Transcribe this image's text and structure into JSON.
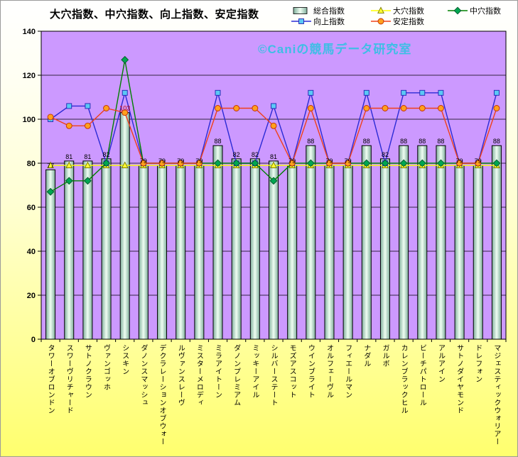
{
  "watermark": "©Caniの競馬データ研究室",
  "chart_data": {
    "type": "bar+line combo",
    "title": "大穴指数、中穴指数、向上指数、安定指数",
    "categories": [
      "タワーオブロンドン",
      "スワーヴリチャード",
      "サトノクラウン",
      "ヴァンゴッホ",
      "シスキン",
      "ダノンスマッシュ",
      "デクラレーションオブウォー",
      "ルヴァンスレーヴ",
      "ミスターメロディ",
      "ミラアイトーン",
      "ダノンプレミアム",
      "ミッキーアイル",
      "シルバーステート",
      "モズアスコット",
      "ウインブライト",
      "オルフェーヴル",
      "フィエールマン",
      "ナダル",
      "ガルボ",
      "カレンブラックヒル",
      "ビーチパトロール",
      "アルアイン",
      "サトノダイヤモンド",
      "ドレフォン",
      "マジェスティックウォリアー"
    ],
    "series": [
      {
        "name": "総合指数",
        "type": "bar",
        "values": [
          77,
          81,
          81,
          82,
          103,
          79,
          79,
          79,
          79,
          88,
          82,
          82,
          81,
          79,
          88,
          79,
          79,
          88,
          82,
          88,
          88,
          88,
          79,
          79,
          88
        ]
      },
      {
        "name": "大穴指数",
        "type": "line",
        "marker": "triangle",
        "line_color": "#FFFF00",
        "marker_fill": "#FFFF33",
        "marker_edge": "#7A7A00",
        "values": [
          79,
          79,
          79,
          79,
          79,
          79,
          79,
          79,
          79,
          79,
          79,
          79,
          79,
          79,
          79,
          79,
          79,
          79,
          79,
          79,
          79,
          79,
          79,
          79,
          79
        ]
      },
      {
        "name": "中穴指数",
        "type": "line",
        "marker": "diamond",
        "line_color": "#008000",
        "marker_fill": "#00A651",
        "marker_edge": "#00582A",
        "values": [
          67,
          72,
          72,
          80,
          127,
          80,
          80,
          80,
          80,
          80,
          80,
          80,
          72,
          80,
          80,
          80,
          80,
          80,
          80,
          80,
          80,
          80,
          80,
          80,
          80
        ]
      },
      {
        "name": "向上指数",
        "type": "line",
        "marker": "square",
        "line_color": "#2B2BD5",
        "marker_fill": "#5BC8F5",
        "marker_edge": "#2323B0",
        "values": [
          100,
          106,
          106,
          80,
          112,
          80,
          80,
          80,
          80,
          112,
          80,
          80,
          106,
          80,
          112,
          80,
          80,
          112,
          80,
          112,
          112,
          112,
          80,
          80,
          112
        ]
      },
      {
        "name": "安定指数",
        "type": "line",
        "marker": "circle",
        "line_color": "#F0401A",
        "marker_fill": "#FFA01E",
        "marker_edge": "#C23000",
        "values": [
          101,
          97,
          97,
          105,
          103,
          80,
          80,
          80,
          80,
          105,
          105,
          105,
          97,
          80,
          105,
          80,
          80,
          105,
          105,
          105,
          105,
          105,
          80,
          80,
          105
        ]
      }
    ],
    "ylim": [
      0,
      140
    ],
    "yticks": [
      0,
      20,
      40,
      60,
      80,
      100,
      120,
      140
    ],
    "grid": "horizontal black gridlines",
    "legend_position": "top-right",
    "bar_label_highlight": {
      "index": 4,
      "color": "#C00000"
    },
    "bar_style": {
      "edge": "#7FAE9B",
      "center": "#EFFEF2",
      "border": "#000000"
    },
    "plot_bg": "#CC99FF",
    "colors": {
      "background_top": "#FFFFFF",
      "background_bottom": "#FFFF6E",
      "watermark": "#26C4E0",
      "axis": "#000000",
      "bar_label": "#000000"
    }
  }
}
